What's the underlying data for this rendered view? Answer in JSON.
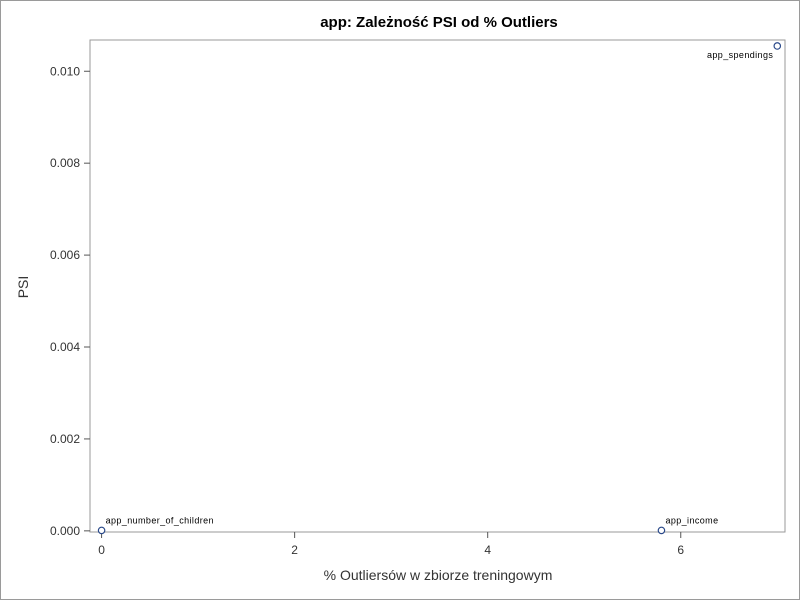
{
  "chart_data": {
    "type": "scatter",
    "title": "app: Zależność PSI od % Outliers",
    "xlabel": "% Outliersów w zbiorze treningowym",
    "ylabel": "PSI",
    "xlim": [
      -0.12,
      7.08
    ],
    "ylim": [
      -2.5e-05,
      0.01068
    ],
    "x_ticks": [
      0,
      2,
      4,
      6
    ],
    "x_tick_labels": [
      "0",
      "2",
      "4",
      "6"
    ],
    "y_ticks": [
      0.0,
      0.002,
      0.004,
      0.006,
      0.008,
      0.01
    ],
    "y_tick_labels": [
      "0.000",
      "0.002",
      "0.004",
      "0.006",
      "0.008",
      "0.010"
    ],
    "grid": false,
    "points": [
      {
        "label": "app_number_of_children",
        "x": 0.0,
        "y": 1e-05
      },
      {
        "label": "app_income",
        "x": 5.8,
        "y": 1e-05
      },
      {
        "label": "app_spendings",
        "x": 7.0,
        "y": 0.01055
      }
    ],
    "colors": {
      "marker": "#2b4a8a",
      "frame": "#9a9a9a"
    }
  }
}
